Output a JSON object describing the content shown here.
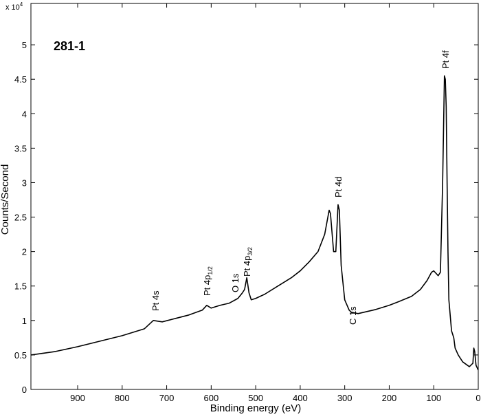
{
  "chart_data": {
    "type": "line",
    "title": "281-1",
    "x_label": "Binding energy (eV)",
    "y_label": "Counts/Second",
    "y_multiplier": {
      "base": "x 10",
      "exponent": "4"
    },
    "xlim": [
      1005,
      0
    ],
    "ylim": [
      0,
      5.6
    ],
    "xticks": [
      900,
      800,
      700,
      600,
      500,
      400,
      300,
      200,
      100,
      0
    ],
    "yticks": [
      0,
      0.5,
      1,
      1.5,
      2,
      2.5,
      3,
      3.5,
      4,
      4.5,
      5
    ],
    "x_reversed": true,
    "grid": false,
    "series": [
      {
        "color": "#000000",
        "x": [
          1005,
          950,
          900,
          850,
          800,
          750,
          730,
          710,
          680,
          650,
          620,
          610,
          600,
          580,
          560,
          540,
          530,
          525,
          520,
          515,
          510,
          500,
          480,
          450,
          420,
          400,
          380,
          360,
          345,
          335,
          332,
          325,
          320,
          315,
          312,
          308,
          300,
          290,
          285,
          270,
          250,
          230,
          200,
          180,
          150,
          130,
          115,
          105,
          100,
          90,
          85,
          80,
          76,
          74,
          72,
          70,
          68,
          66,
          60,
          55,
          52,
          45,
          35,
          20,
          12,
          10,
          8,
          5,
          0
        ],
        "values": [
          0.5,
          0.55,
          0.62,
          0.7,
          0.78,
          0.88,
          1.0,
          0.98,
          1.03,
          1.08,
          1.15,
          1.22,
          1.18,
          1.22,
          1.25,
          1.32,
          1.4,
          1.45,
          1.62,
          1.4,
          1.3,
          1.32,
          1.38,
          1.5,
          1.62,
          1.72,
          1.85,
          2.0,
          2.25,
          2.6,
          2.55,
          2.0,
          2.0,
          2.68,
          2.6,
          1.8,
          1.3,
          1.15,
          1.12,
          1.1,
          1.13,
          1.16,
          1.22,
          1.27,
          1.35,
          1.45,
          1.58,
          1.7,
          1.72,
          1.65,
          1.7,
          3.0,
          4.55,
          4.5,
          4.1,
          3.0,
          2.0,
          1.3,
          0.85,
          0.75,
          0.6,
          0.5,
          0.4,
          0.33,
          0.38,
          0.6,
          0.55,
          0.35,
          0.28
        ]
      }
    ],
    "annotations": [
      {
        "text": "Pt 4s"
      },
      {
        "text": "Pt 4p",
        "sub": "1/2"
      },
      {
        "text": "O 1s"
      },
      {
        "text": "Pt 4p",
        "sub": "3/2"
      },
      {
        "text": "Pt 4d"
      },
      {
        "text": "C 1s"
      },
      {
        "text": "Pt 4f"
      }
    ]
  }
}
